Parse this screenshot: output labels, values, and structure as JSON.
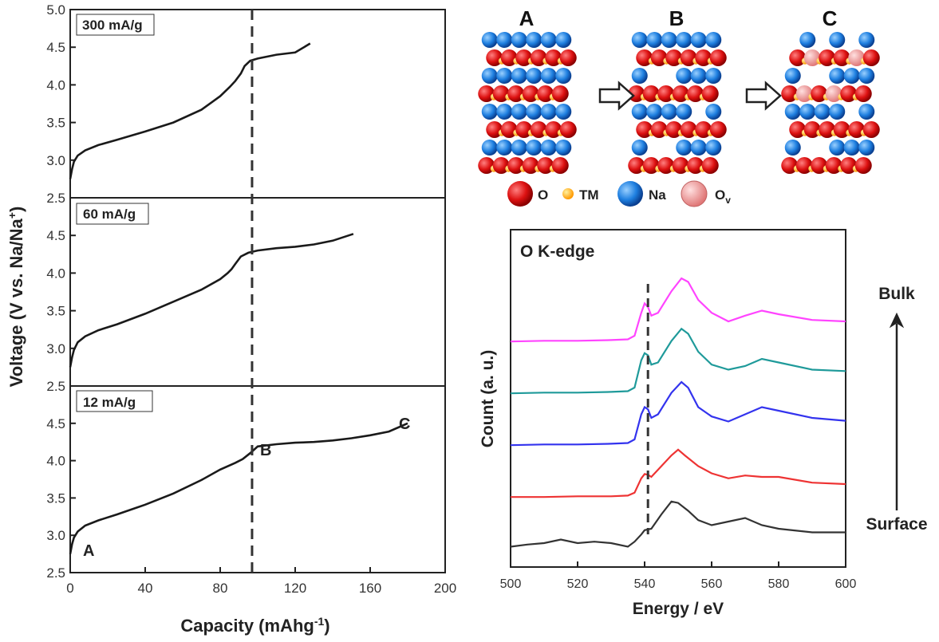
{
  "chart_data": [
    {
      "type": "line",
      "ylabel_parts": [
        "Voltage (V vs. Na/Na",
        "+",
        ")"
      ],
      "xlabel_parts": [
        "Capacity (mAhg",
        "-1",
        ")"
      ],
      "xlim": [
        0,
        200
      ],
      "x_ticks": [
        0,
        40,
        80,
        120,
        160,
        200
      ],
      "ylim": [
        2.5,
        5.0
      ],
      "y_ticks_top": [
        "2.5",
        "3.0",
        "3.5",
        "4.0",
        "4.5",
        "5.0"
      ],
      "y_ticks_mid": [
        "2.5",
        "3.0",
        "3.5",
        "4.0",
        "4.5"
      ],
      "y_ticks_bot": [
        "2.5",
        "3.0",
        "3.5",
        "4.0",
        "4.5"
      ],
      "dashed_x": 97,
      "panels": [
        {
          "label": "300 mA/g",
          "x": [
            0,
            1,
            2,
            4,
            8,
            15,
            25,
            40,
            55,
            70,
            80,
            85,
            88,
            91,
            93,
            96,
            100,
            110,
            120,
            128
          ],
          "y": [
            2.75,
            2.88,
            2.98,
            3.06,
            3.13,
            3.2,
            3.27,
            3.38,
            3.5,
            3.67,
            3.85,
            3.97,
            4.05,
            4.15,
            4.25,
            4.32,
            4.35,
            4.4,
            4.43,
            4.55
          ]
        },
        {
          "label": "60 mA/g",
          "x": [
            0,
            1,
            2,
            4,
            8,
            15,
            25,
            40,
            55,
            70,
            80,
            84,
            86,
            88,
            91,
            95,
            100,
            110,
            120,
            130,
            140,
            151
          ],
          "y": [
            2.75,
            2.88,
            2.98,
            3.08,
            3.16,
            3.24,
            3.32,
            3.46,
            3.62,
            3.78,
            3.92,
            4.0,
            4.05,
            4.12,
            4.22,
            4.27,
            4.3,
            4.33,
            4.35,
            4.38,
            4.43,
            4.52
          ]
        },
        {
          "label": "12 mA/g",
          "x": [
            0,
            1,
            2,
            4,
            8,
            15,
            25,
            40,
            55,
            70,
            80,
            88,
            92,
            96,
            100,
            110,
            120,
            130,
            140,
            150,
            160,
            170,
            180
          ],
          "y": [
            2.75,
            2.88,
            2.97,
            3.05,
            3.13,
            3.2,
            3.28,
            3.41,
            3.56,
            3.74,
            3.88,
            3.97,
            4.02,
            4.1,
            4.19,
            4.22,
            4.24,
            4.25,
            4.27,
            4.3,
            4.34,
            4.39,
            4.5
          ]
        }
      ],
      "points": [
        {
          "label": "A",
          "x": 2,
          "y": 2.75,
          "panel": 2
        },
        {
          "label": "B",
          "x": 97,
          "y": 4.1,
          "panel": 2
        },
        {
          "label": "C",
          "x": 180,
          "y": 4.5,
          "panel": 2
        }
      ]
    },
    {
      "type": "line",
      "title": "O K-edge",
      "ylabel": "Count (a. u.)",
      "xlabel": "Energy / eV",
      "xlim": [
        500,
        600
      ],
      "x_ticks": [
        500,
        520,
        540,
        560,
        580,
        600
      ],
      "dashed_x": 541,
      "series": [
        {
          "color": "#ff44ff",
          "offset": 4,
          "x": [
            500,
            510,
            520,
            530,
            535,
            537,
            539,
            540,
            541,
            542,
            544,
            548,
            551,
            553,
            556,
            560,
            565,
            570,
            575,
            580,
            590,
            600
          ],
          "y": [
            0.02,
            0.03,
            0.03,
            0.04,
            0.05,
            0.1,
            0.42,
            0.55,
            0.5,
            0.38,
            0.42,
            0.72,
            0.9,
            0.85,
            0.6,
            0.42,
            0.3,
            0.38,
            0.45,
            0.4,
            0.32,
            0.3
          ]
        },
        {
          "color": "#1f9a9a",
          "offset": 3,
          "x": [
            500,
            510,
            520,
            530,
            535,
            537,
            539,
            540,
            541,
            542,
            544,
            548,
            551,
            553,
            556,
            560,
            565,
            570,
            575,
            580,
            590,
            600
          ],
          "y": [
            0.02,
            0.03,
            0.03,
            0.04,
            0.05,
            0.1,
            0.48,
            0.58,
            0.55,
            0.42,
            0.45,
            0.75,
            0.92,
            0.85,
            0.6,
            0.42,
            0.35,
            0.4,
            0.5,
            0.45,
            0.35,
            0.33
          ]
        },
        {
          "color": "#3333ee",
          "offset": 2,
          "x": [
            500,
            510,
            520,
            530,
            535,
            537,
            539,
            540,
            541,
            542,
            544,
            548,
            551,
            553,
            556,
            560,
            565,
            570,
            575,
            580,
            590,
            600
          ],
          "y": [
            0.02,
            0.03,
            0.03,
            0.04,
            0.05,
            0.1,
            0.45,
            0.55,
            0.52,
            0.4,
            0.45,
            0.75,
            0.9,
            0.82,
            0.55,
            0.42,
            0.35,
            0.45,
            0.55,
            0.5,
            0.4,
            0.36
          ]
        },
        {
          "color": "#ee3333",
          "offset": 1,
          "x": [
            500,
            510,
            520,
            530,
            535,
            537,
            539,
            540,
            541,
            542,
            544,
            548,
            550,
            552,
            556,
            560,
            565,
            570,
            575,
            580,
            590,
            600
          ],
          "y": [
            0.02,
            0.02,
            0.03,
            0.03,
            0.04,
            0.08,
            0.28,
            0.34,
            0.33,
            0.3,
            0.4,
            0.6,
            0.68,
            0.6,
            0.45,
            0.35,
            0.28,
            0.32,
            0.3,
            0.3,
            0.22,
            0.2
          ]
        },
        {
          "color": "#333333",
          "offset": 0,
          "x": [
            500,
            505,
            510,
            515,
            520,
            525,
            530,
            535,
            537,
            539,
            540,
            542,
            545,
            548,
            550,
            553,
            556,
            560,
            565,
            570,
            575,
            580,
            590,
            600
          ],
          "y": [
            0.05,
            0.08,
            0.1,
            0.15,
            0.1,
            0.12,
            0.1,
            0.05,
            0.12,
            0.22,
            0.28,
            0.3,
            0.5,
            0.68,
            0.66,
            0.55,
            0.42,
            0.35,
            0.4,
            0.45,
            0.35,
            0.3,
            0.25,
            0.25
          ]
        }
      ],
      "arrow_top_label": "Bulk",
      "arrow_bottom_label": "Surface"
    }
  ],
  "schematic": {
    "stages": [
      "A",
      "B",
      "C"
    ],
    "legend": [
      {
        "label": "O",
        "color": "#dd1111"
      },
      {
        "label": "TM",
        "color": "#ffaa00"
      },
      {
        "label": "Na",
        "color": "#1e7fe0"
      },
      {
        "label": "O",
        "sub": "v",
        "color": "#f09a9a"
      }
    ]
  }
}
